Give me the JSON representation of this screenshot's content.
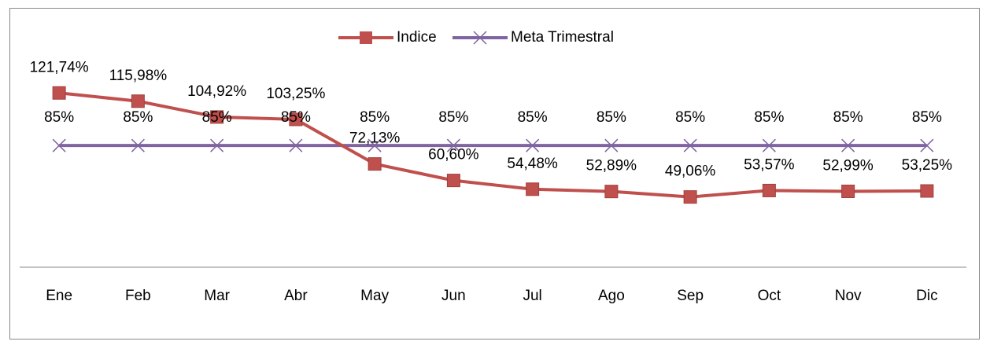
{
  "chart_data": {
    "type": "line",
    "categories": [
      "Ene",
      "Feb",
      "Mar",
      "Abr",
      "May",
      "Jun",
      "Jul",
      "Ago",
      "Sep",
      "Oct",
      "Nov",
      "Dic"
    ],
    "series": [
      {
        "name": "Indice",
        "color": "#c0504d",
        "values": [
          121.74,
          115.98,
          104.92,
          103.25,
          72.13,
          60.6,
          54.48,
          52.89,
          49.06,
          53.57,
          52.99,
          53.25
        ],
        "value_labels": [
          "121,74%",
          "115,98%",
          "104,92%",
          "103,25%",
          "72,13%",
          "60,60%",
          "54,48%",
          "52,89%",
          "49,06%",
          "53,57%",
          "52,99%",
          "53,25%"
        ]
      },
      {
        "name": "Meta Trimestral",
        "color": "#8064a2",
        "values": [
          85,
          85,
          85,
          85,
          85,
          85,
          85,
          85,
          85,
          85,
          85,
          85
        ],
        "value_labels": [
          "85%",
          "85%",
          "85%",
          "85%",
          "85%",
          "85%",
          "85%",
          "85%",
          "85%",
          "85%",
          "85%",
          "85%"
        ]
      }
    ],
    "ylim": [
      0,
      140
    ],
    "legend": "top"
  }
}
